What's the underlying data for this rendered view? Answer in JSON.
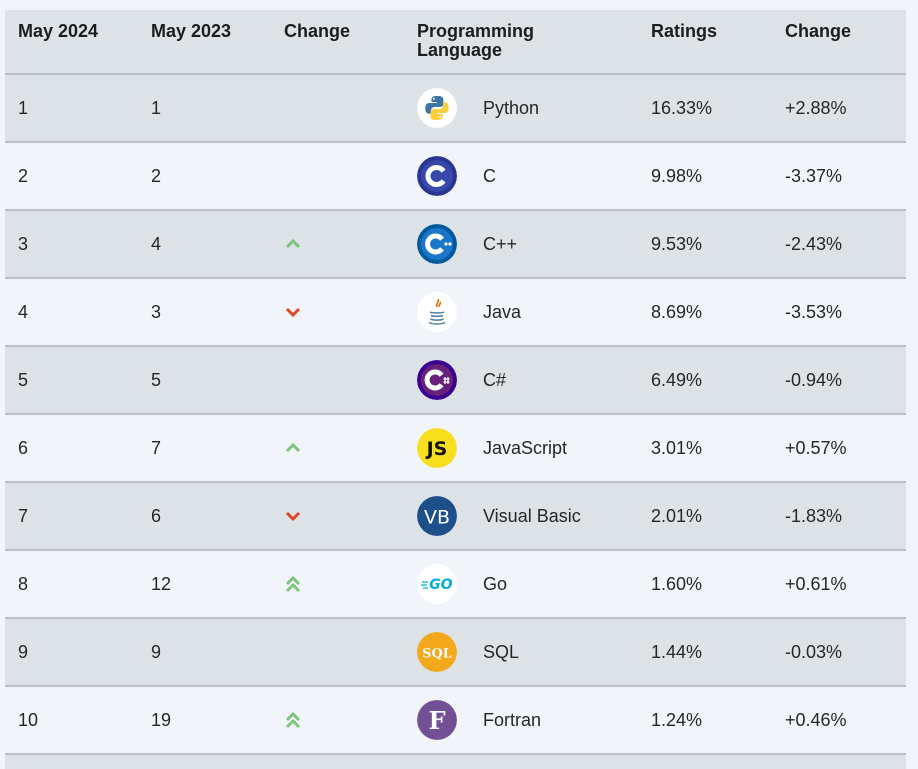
{
  "header": {
    "col_may2024": "May 2024",
    "col_may2023": "May 2023",
    "col_change": "Change",
    "col_language_line1": "Programming",
    "col_language_line2": "Language",
    "col_ratings": "Ratings",
    "col_change2": "Change"
  },
  "rows": [
    {
      "rank2024": "1",
      "rank2023": "1",
      "trend": "none",
      "logo": "python-icon",
      "language": "Python",
      "rating": "16.33%",
      "change": "+2.88%"
    },
    {
      "rank2024": "2",
      "rank2023": "2",
      "trend": "none",
      "logo": "c-icon",
      "language": "C",
      "rating": "9.98%",
      "change": "-3.37%"
    },
    {
      "rank2024": "3",
      "rank2023": "4",
      "trend": "up",
      "logo": "cpp-icon",
      "language": "C++",
      "rating": "9.53%",
      "change": "-2.43%"
    },
    {
      "rank2024": "4",
      "rank2023": "3",
      "trend": "down",
      "logo": "java-icon",
      "language": "Java",
      "rating": "8.69%",
      "change": "-3.53%"
    },
    {
      "rank2024": "5",
      "rank2023": "5",
      "trend": "none",
      "logo": "csharp-icon",
      "language": "C#",
      "rating": "6.49%",
      "change": "-0.94%"
    },
    {
      "rank2024": "6",
      "rank2023": "7",
      "trend": "up",
      "logo": "javascript-icon",
      "language": "JavaScript",
      "rating": "3.01%",
      "change": "+0.57%"
    },
    {
      "rank2024": "7",
      "rank2023": "6",
      "trend": "down",
      "logo": "visual-basic-icon",
      "language": "Visual Basic",
      "rating": "2.01%",
      "change": "-1.83%"
    },
    {
      "rank2024": "8",
      "rank2023": "12",
      "trend": "double-up",
      "logo": "go-icon",
      "language": "Go",
      "rating": "1.60%",
      "change": "+0.61%"
    },
    {
      "rank2024": "9",
      "rank2023": "9",
      "trend": "none",
      "logo": "sql-icon",
      "language": "SQL",
      "rating": "1.44%",
      "change": "-0.03%"
    },
    {
      "rank2024": "10",
      "rank2023": "19",
      "trend": "double-up",
      "logo": "fortran-icon",
      "language": "Fortran",
      "rating": "1.24%",
      "change": "+0.46%"
    }
  ],
  "logo_text": {
    "js": "JS",
    "vb": "VB",
    "go": "GO",
    "sql": "SQL",
    "fortran": "F"
  },
  "colors": {
    "up_arrow": "#7fc37f",
    "down_arrow": "#e0452a",
    "row_odd": "#dde2e7",
    "row_even": "#f1f5fa",
    "row_border": "#b9bec3"
  }
}
